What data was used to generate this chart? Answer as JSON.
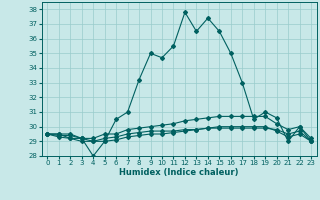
{
  "xlabel": "Humidex (Indice chaleur)",
  "ylabel": "",
  "xlim": [
    -0.5,
    23.5
  ],
  "ylim": [
    28,
    38.5
  ],
  "yticks": [
    28,
    29,
    30,
    31,
    32,
    33,
    34,
    35,
    36,
    37,
    38
  ],
  "xticks": [
    0,
    1,
    2,
    3,
    4,
    5,
    6,
    7,
    8,
    9,
    10,
    11,
    12,
    13,
    14,
    15,
    16,
    17,
    18,
    19,
    20,
    21,
    22,
    23
  ],
  "bg_color": "#c8e8e8",
  "line_color": "#006060",
  "grid_color": "#99cccc",
  "lines": [
    {
      "x": [
        0,
        1,
        2,
        3,
        4,
        5,
        6,
        7,
        8,
        9,
        10,
        11,
        12,
        13,
        14,
        15,
        16,
        17,
        18,
        19,
        20,
        21,
        22,
        23
      ],
      "y": [
        29.5,
        29.5,
        29.5,
        29.2,
        28.0,
        29.0,
        30.5,
        31.0,
        33.2,
        35.0,
        34.7,
        35.5,
        37.8,
        36.5,
        37.4,
        36.5,
        35.0,
        33.0,
        30.5,
        31.0,
        30.6,
        29.0,
        30.0,
        29.0
      ]
    },
    {
      "x": [
        0,
        1,
        2,
        3,
        4,
        5,
        6,
        7,
        8,
        9,
        10,
        11,
        12,
        13,
        14,
        15,
        16,
        17,
        18,
        19,
        20,
        21,
        22,
        23
      ],
      "y": [
        29.5,
        29.5,
        29.2,
        29.2,
        29.2,
        29.5,
        29.5,
        29.8,
        29.9,
        30.0,
        30.1,
        30.2,
        30.4,
        30.5,
        30.6,
        30.7,
        30.7,
        30.7,
        30.7,
        30.7,
        30.2,
        29.8,
        30.0,
        29.2
      ]
    },
    {
      "x": [
        0,
        1,
        2,
        3,
        4,
        5,
        6,
        7,
        8,
        9,
        10,
        11,
        12,
        13,
        14,
        15,
        16,
        17,
        18,
        19,
        20,
        21,
        22,
        23
      ],
      "y": [
        29.5,
        29.3,
        29.2,
        29.0,
        29.0,
        29.0,
        29.1,
        29.3,
        29.4,
        29.5,
        29.5,
        29.6,
        29.7,
        29.8,
        29.9,
        30.0,
        30.0,
        30.0,
        30.0,
        30.0,
        29.7,
        29.3,
        29.5,
        29.0
      ]
    },
    {
      "x": [
        0,
        1,
        2,
        3,
        4,
        5,
        6,
        7,
        8,
        9,
        10,
        11,
        12,
        13,
        14,
        15,
        16,
        17,
        18,
        19,
        20,
        21,
        22,
        23
      ],
      "y": [
        29.5,
        29.4,
        29.4,
        29.2,
        29.0,
        29.2,
        29.3,
        29.5,
        29.6,
        29.7,
        29.7,
        29.7,
        29.8,
        29.8,
        29.9,
        29.9,
        29.9,
        29.9,
        29.9,
        29.9,
        29.8,
        29.5,
        29.7,
        29.0
      ]
    }
  ]
}
